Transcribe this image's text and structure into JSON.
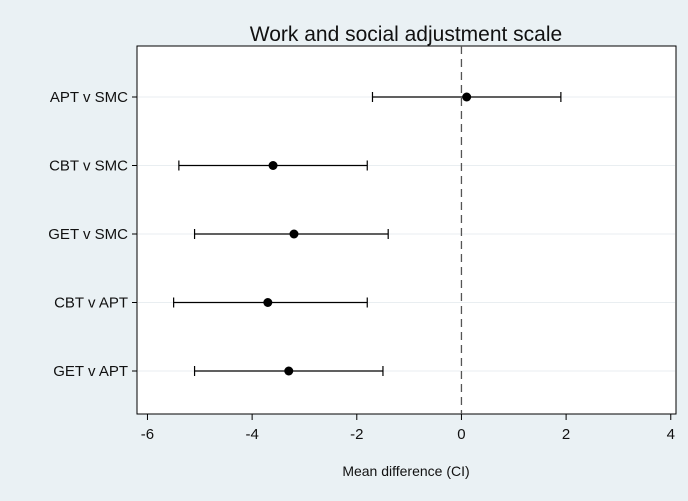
{
  "chart_data": {
    "type": "scatter",
    "subtype": "forest-plot",
    "title": "Work and social adjustment scale",
    "xlabel": "Mean difference (CI)",
    "ylabel": "",
    "xlim": [
      -6.2,
      4.1
    ],
    "x_ticks": [
      -6,
      -4,
      -2,
      0,
      2,
      4
    ],
    "x_tick_labels": [
      "-6",
      "-4",
      "-2",
      "0",
      "2",
      "4"
    ],
    "reference_line": {
      "x": 0,
      "style": "dashed"
    },
    "grid": {
      "horizontal": true,
      "vertical": false
    },
    "categories": [
      "APT v SMC",
      "CBT v SMC",
      "GET v SMC",
      "CBT v APT",
      "GET v APT"
    ],
    "series": [
      {
        "estimate": [
          0.1,
          -3.6,
          -3.2,
          -3.7,
          -3.3
        ],
        "ci_lower": [
          -1.7,
          -5.4,
          -5.1,
          -5.5,
          -5.1
        ],
        "ci_upper": [
          1.9,
          -1.8,
          -1.4,
          -1.8,
          -1.5
        ]
      }
    ],
    "colors": {
      "background": "#eaf1f4",
      "plot_bg": "#ffffff",
      "marker": "#000000",
      "grid": "#e9eef1"
    }
  }
}
